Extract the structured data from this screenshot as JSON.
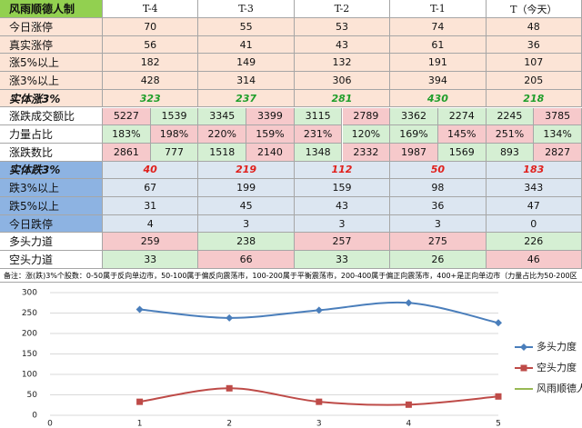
{
  "table": {
    "header": [
      "风雨顺德人制",
      "T-4",
      "T-3",
      "T-2",
      "T-1",
      "T（今天）"
    ],
    "header_fills": [
      "#92d050",
      "#ffffff",
      "#ffffff",
      "#ffffff",
      "#ffffff",
      "#ffffff"
    ],
    "rows": [
      {
        "label": "今日涨停",
        "label_fill": "#fce4d6",
        "cells": [
          "70",
          "55",
          "53",
          "74",
          "48"
        ],
        "fills": [
          "#fce4d6",
          "#fce4d6",
          "#fce4d6",
          "#fce4d6",
          "#fce4d6"
        ]
      },
      {
        "label": "真实涨停",
        "label_fill": "#fce4d6",
        "cells": [
          "56",
          "41",
          "43",
          "61",
          "36"
        ],
        "fills": [
          "#fce4d6",
          "#fce4d6",
          "#fce4d6",
          "#fce4d6",
          "#fce4d6"
        ]
      },
      {
        "label": "涨5%以上",
        "label_fill": "#fce4d6",
        "cells": [
          "182",
          "149",
          "132",
          "191",
          "107"
        ],
        "fills": [
          "#fce4d6",
          "#fce4d6",
          "#fce4d6",
          "#fce4d6",
          "#fce4d6"
        ]
      },
      {
        "label": "涨3%以上",
        "label_fill": "#fce4d6",
        "cells": [
          "428",
          "314",
          "306",
          "394",
          "205"
        ],
        "fills": [
          "#fce4d6",
          "#fce4d6",
          "#fce4d6",
          "#fce4d6",
          "#fce4d6"
        ]
      },
      {
        "label": "实体涨3%",
        "label_fill": "#fce4d6",
        "emphasis": "#1f9e2a",
        "cells": [
          "323",
          "237",
          "281",
          "430",
          "218"
        ],
        "fills": [
          "#fce4d6",
          "#fce4d6",
          "#fce4d6",
          "#fce4d6",
          "#fce4d6"
        ]
      },
      {
        "label": "涨跌成交额比",
        "label_fill": "#ffffff",
        "cells": [
          "5227",
          "1539",
          "3345",
          "3399",
          "3115",
          "2789",
          "3362",
          "2274",
          "2245",
          "3785"
        ],
        "fills": [
          "#f6c9cb",
          "#d5efd3",
          "#d5efd3",
          "#f6c9cb",
          "#d5efd3",
          "#f6c9cb",
          "#d5efd3",
          "#d5efd3",
          "#d5efd3",
          "#f6c9cb"
        ]
      },
      {
        "label": "力量占比",
        "label_fill": "#ffffff",
        "cells": [
          "183%",
          "198%",
          "220%",
          "159%",
          "231%",
          "120%",
          "169%",
          "145%",
          "251%",
          "134%"
        ],
        "fills": [
          "#d5efd3",
          "#f6c9cb",
          "#f6c9cb",
          "#f6c9cb",
          "#f6c9cb",
          "#d5efd3",
          "#d5efd3",
          "#f6c9cb",
          "#f6c9cb",
          "#d5efd3"
        ]
      },
      {
        "label": "涨跌数比",
        "label_fill": "#ffffff",
        "cells": [
          "2861",
          "777",
          "1518",
          "2140",
          "1348",
          "2332",
          "1987",
          "1569",
          "893",
          "2827"
        ],
        "fills": [
          "#f6c9cb",
          "#d5efd3",
          "#d5efd3",
          "#f6c9cb",
          "#d5efd3",
          "#f6c9cb",
          "#f6c9cb",
          "#d5efd3",
          "#d5efd3",
          "#f6c9cb"
        ]
      },
      {
        "label": "实体跌3%",
        "label_fill": "#8db3e2",
        "emphasis": "#e0201c",
        "cells": [
          "40",
          "219",
          "112",
          "50",
          "183"
        ],
        "fills": [
          "#dce6f1",
          "#dce6f1",
          "#dce6f1",
          "#dce6f1",
          "#dce6f1"
        ]
      },
      {
        "label": "跌3%以上",
        "label_fill": "#8db3e2",
        "cells": [
          "67",
          "199",
          "159",
          "98",
          "343"
        ],
        "fills": [
          "#dce6f1",
          "#dce6f1",
          "#dce6f1",
          "#dce6f1",
          "#dce6f1"
        ]
      },
      {
        "label": "跌5%以上",
        "label_fill": "#8db3e2",
        "cells": [
          "31",
          "45",
          "43",
          "36",
          "47"
        ],
        "fills": [
          "#dce6f1",
          "#dce6f1",
          "#dce6f1",
          "#dce6f1",
          "#dce6f1"
        ]
      },
      {
        "label": "今日跌停",
        "label_fill": "#8db3e2",
        "cells": [
          "4",
          "3",
          "3",
          "3",
          "0"
        ],
        "fills": [
          "#dce6f1",
          "#dce6f1",
          "#dce6f1",
          "#dce6f1",
          "#dce6f1"
        ]
      },
      {
        "label": "多头力道",
        "label_fill": "#ffffff",
        "cells": [
          "259",
          "238",
          "257",
          "275",
          "226"
        ],
        "fills": [
          "#f6c9cb",
          "#d5efd3",
          "#f6c9cb",
          "#f6c9cb",
          "#d5efd3"
        ]
      },
      {
        "label": "空头力道",
        "label_fill": "#ffffff",
        "cells": [
          "33",
          "66",
          "33",
          "26",
          "46"
        ],
        "fills": [
          "#d5efd3",
          "#f6c9cb",
          "#d5efd3",
          "#d5efd3",
          "#f6c9cb"
        ]
      }
    ]
  },
  "note": "备注：涨(跌)3%个股数：0-50属于反向单边市，50-100属于偏反向震荡市，100-200属于平衡震荡市，200-400属于偏正向震荡市，400+是正向单边市（力量占比为50-200区",
  "chart_data": {
    "type": "line",
    "x": [
      1,
      2,
      3,
      4,
      5
    ],
    "series": [
      {
        "name": "多头力度",
        "color": "#4a7ebb",
        "marker": "diamond",
        "values": [
          259,
          238,
          257,
          275,
          226
        ]
      },
      {
        "name": "空头力度",
        "color": "#be4b48",
        "marker": "square",
        "values": [
          33,
          66,
          33,
          26,
          46
        ]
      },
      {
        "name": "风雨顺德人",
        "color": "#98b954",
        "marker": "none",
        "values": [
          null,
          null,
          null,
          null,
          null
        ]
      }
    ],
    "xlim": [
      0,
      5
    ],
    "xticks": [
      0,
      1,
      2,
      3,
      4,
      5
    ],
    "ylim": [
      0,
      300
    ],
    "yticks": [
      0,
      50,
      100,
      150,
      200,
      250,
      300
    ],
    "grid": true,
    "smooth": true,
    "legend": "right"
  }
}
